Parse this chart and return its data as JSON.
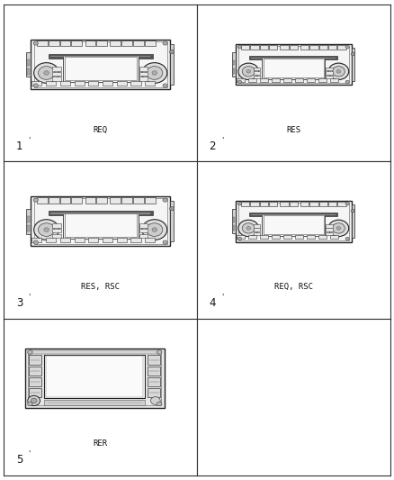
{
  "background": "#ffffff",
  "grid_color": "#333333",
  "panels": [
    {
      "row": 0,
      "col": 0,
      "label": "REQ",
      "number": "1",
      "type": "req"
    },
    {
      "row": 0,
      "col": 1,
      "label": "RES",
      "number": "2",
      "type": "res"
    },
    {
      "row": 1,
      "col": 0,
      "label": "RES, RSC",
      "number": "3",
      "type": "res_rsc"
    },
    {
      "row": 1,
      "col": 1,
      "label": "REQ, RSC",
      "number": "4",
      "type": "req_rsc"
    },
    {
      "row": 2,
      "col": 0,
      "label": "RER",
      "number": "5",
      "type": "rer"
    }
  ],
  "label_fontsize": 6.5,
  "number_fontsize": 8.5
}
